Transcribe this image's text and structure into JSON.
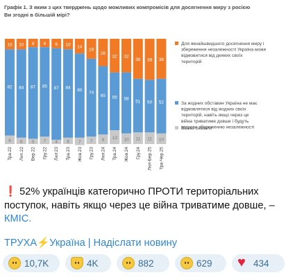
{
  "headline": {
    "icon": "exclamation-icon",
    "text": "52% українців категорично ПРОТИ територіальних поступок, навіть якщо через це війна триватиме довше, –",
    "link": "КМІС."
  },
  "footer": {
    "channel": "ТРУХА",
    "channel_icon": "lightning-icon",
    "section": "Україна",
    "sep1": "|",
    "sep2": "|",
    "submit": "Надіслати новину"
  },
  "reactions": [
    {
      "icon": "neutral-face-icon",
      "count": "10,7K"
    },
    {
      "icon": "thumbs-up-icon",
      "count": "4K"
    },
    {
      "icon": "exploding-head-icon",
      "count": "882"
    },
    {
      "icon": "woozy-face-icon",
      "count": "629"
    },
    {
      "icon": "heart-icon",
      "count": "434"
    }
  ],
  "colors": {
    "orange": "#f07a26",
    "blue": "#5b9bd5",
    "grey": "#c9c9c9",
    "link": "#2f86d0"
  },
  "chart_data": {
    "type": "bar",
    "stacked": true,
    "title": "Графік 1. З яким з цих тверджень щодо можливих компромісів для досягнення миру з росією Ви згодні в більшій мірі?",
    "categories": [
      "Тра.22",
      "Лип.22",
      "Вер.22",
      "Гру.22",
      "Лют.23",
      "Тра.23",
      "Жов.23",
      "Гру.23",
      "Лют.24",
      "Тра.24",
      "Жов.24",
      "Гру.24",
      "Лют-Бер.25",
      "Тра-Чер.25"
    ],
    "series": [
      {
        "name": "Для якнайшвидшого досягнення миру і збереження незалежності Україна може відмовитися від деяких своїх територій",
        "color": "#f07a26",
        "values": [
          10,
          10,
          8,
          8,
          9,
          10,
          14,
          19,
          26,
          32,
          32,
          38,
          39,
          38
        ]
      },
      {
        "name": "За жодних обставин Україна не має відмовлятися від жодних своїх територій, навіть якщо через це війна триватиме довше і будуть загрози збереженню незалежності",
        "color": "#5b9bd5",
        "values": [
          82,
          84,
          87,
          85,
          87,
          84,
          80,
          74,
          65,
          55,
          58,
          51,
          50,
          52
        ]
      },
      {
        "name": "Важко сказати",
        "color": "#c9c9c9",
        "values": [
          8,
          6,
          5,
          7,
          4,
          6,
          7,
          7,
          9,
          13,
          10,
          11,
          11,
          10
        ]
      }
    ],
    "ylim": [
      0,
      100
    ],
    "legend": "right"
  }
}
